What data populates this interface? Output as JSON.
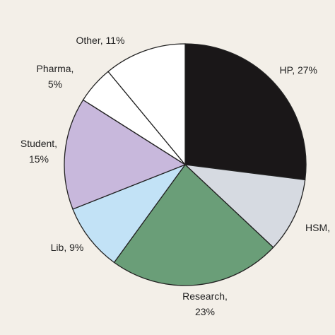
{
  "chart_data": {
    "type": "pie",
    "slices": [
      {
        "label": "HP, 27%",
        "name": "HP",
        "value": 27,
        "color": "#1a1718"
      },
      {
        "label": "HSM,",
        "name": "HSM",
        "value": 10,
        "color": "#d6dae1"
      },
      {
        "label": "Research, 23%",
        "name": "Research",
        "value": 23,
        "color": "#6a9e78"
      },
      {
        "label": "Lib, 9%",
        "name": "Lib",
        "value": 9,
        "color": "#c2e2f6"
      },
      {
        "label": "Student, 15%",
        "name": "Student",
        "value": 15,
        "color": "#c8b8dc"
      },
      {
        "label": "Pharma, 5%",
        "name": "Pharma",
        "value": 5,
        "color": "#ffffff"
      },
      {
        "label": "Other, 11%",
        "name": "Other",
        "value": 11,
        "color": "#ffffff"
      }
    ]
  }
}
